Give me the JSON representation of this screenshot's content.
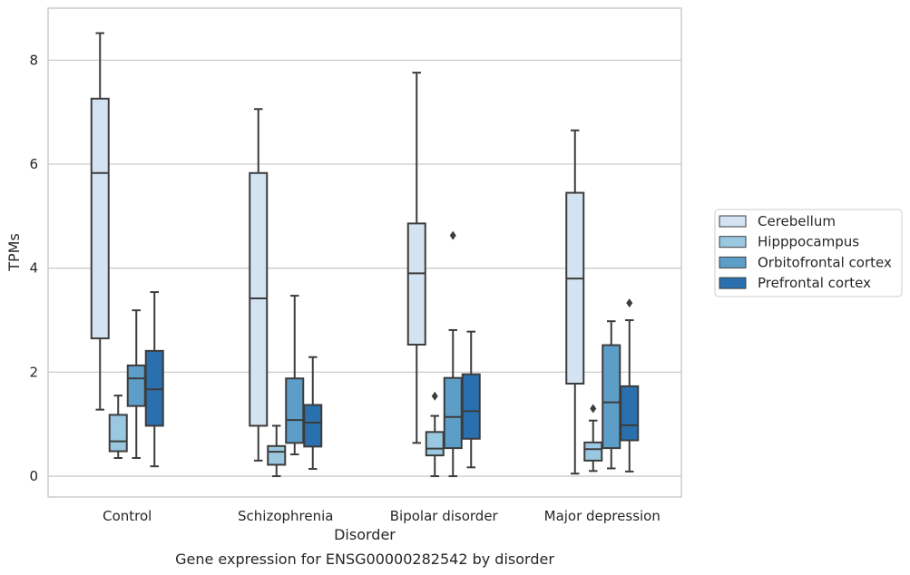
{
  "chart_data": {
    "type": "box",
    "title": "",
    "caption": "Gene expression for ENSG00000282542 by disorder",
    "xlabel": "Disorder",
    "ylabel": "TPMs",
    "categories": [
      "Control",
      "Schizophrenia",
      "Bipolar disorder",
      "Major depression"
    ],
    "ylim": [
      -0.4,
      9.0
    ],
    "yticks": [
      0,
      2,
      4,
      6,
      8
    ],
    "grid": "y",
    "legend_position": "right",
    "series": [
      {
        "name": "Cerebellum",
        "color": "#d3e3f2",
        "boxes": [
          {
            "whisker_low": 1.28,
            "q1": 2.65,
            "median": 5.83,
            "q3": 7.26,
            "whisker_high": 8.52,
            "outliers": []
          },
          {
            "whisker_low": 0.3,
            "q1": 0.97,
            "median": 3.42,
            "q3": 5.83,
            "whisker_high": 7.06,
            "outliers": []
          },
          {
            "whisker_low": 0.64,
            "q1": 2.53,
            "median": 3.9,
            "q3": 4.86,
            "whisker_high": 7.76,
            "outliers": []
          },
          {
            "whisker_low": 0.05,
            "q1": 1.78,
            "median": 3.8,
            "q3": 5.45,
            "whisker_high": 6.65,
            "outliers": []
          }
        ]
      },
      {
        "name": "Hipppocampus",
        "color": "#9ac8e0",
        "boxes": [
          {
            "whisker_low": 0.35,
            "q1": 0.48,
            "median": 0.67,
            "q3": 1.18,
            "whisker_high": 1.55,
            "outliers": []
          },
          {
            "whisker_low": 0.0,
            "q1": 0.22,
            "median": 0.47,
            "q3": 0.58,
            "whisker_high": 0.97,
            "outliers": []
          },
          {
            "whisker_low": 0.0,
            "q1": 0.4,
            "median": 0.53,
            "q3": 0.85,
            "whisker_high": 1.16,
            "outliers": [
              1.54
            ]
          },
          {
            "whisker_low": 0.1,
            "q1": 0.3,
            "median": 0.52,
            "q3": 0.65,
            "whisker_high": 1.07,
            "outliers": [
              1.3
            ]
          }
        ]
      },
      {
        "name": "Orbitofrontal cortex",
        "color": "#5d9ec9",
        "boxes": [
          {
            "whisker_low": 0.35,
            "q1": 1.35,
            "median": 1.88,
            "q3": 2.13,
            "whisker_high": 3.19,
            "outliers": []
          },
          {
            "whisker_low": 0.42,
            "q1": 0.64,
            "median": 1.08,
            "q3": 1.88,
            "whisker_high": 3.47,
            "outliers": []
          },
          {
            "whisker_low": 0.0,
            "q1": 0.54,
            "median": 1.14,
            "q3": 1.89,
            "whisker_high": 2.81,
            "outliers": [
              4.63
            ]
          },
          {
            "whisker_low": 0.15,
            "q1": 0.54,
            "median": 1.42,
            "q3": 2.52,
            "whisker_high": 2.98,
            "outliers": []
          }
        ]
      },
      {
        "name": "Prefrontal cortex",
        "color": "#2a6fae",
        "boxes": [
          {
            "whisker_low": 0.19,
            "q1": 0.97,
            "median": 1.67,
            "q3": 2.41,
            "whisker_high": 3.54,
            "outliers": []
          },
          {
            "whisker_low": 0.14,
            "q1": 0.57,
            "median": 1.03,
            "q3": 1.37,
            "whisker_high": 2.29,
            "outliers": []
          },
          {
            "whisker_low": 0.17,
            "q1": 0.72,
            "median": 1.25,
            "q3": 1.96,
            "whisker_high": 2.78,
            "outliers": []
          },
          {
            "whisker_low": 0.09,
            "q1": 0.69,
            "median": 0.98,
            "q3": 1.73,
            "whisker_high": 3.0,
            "outliers": [
              3.33
            ]
          }
        ]
      }
    ]
  }
}
